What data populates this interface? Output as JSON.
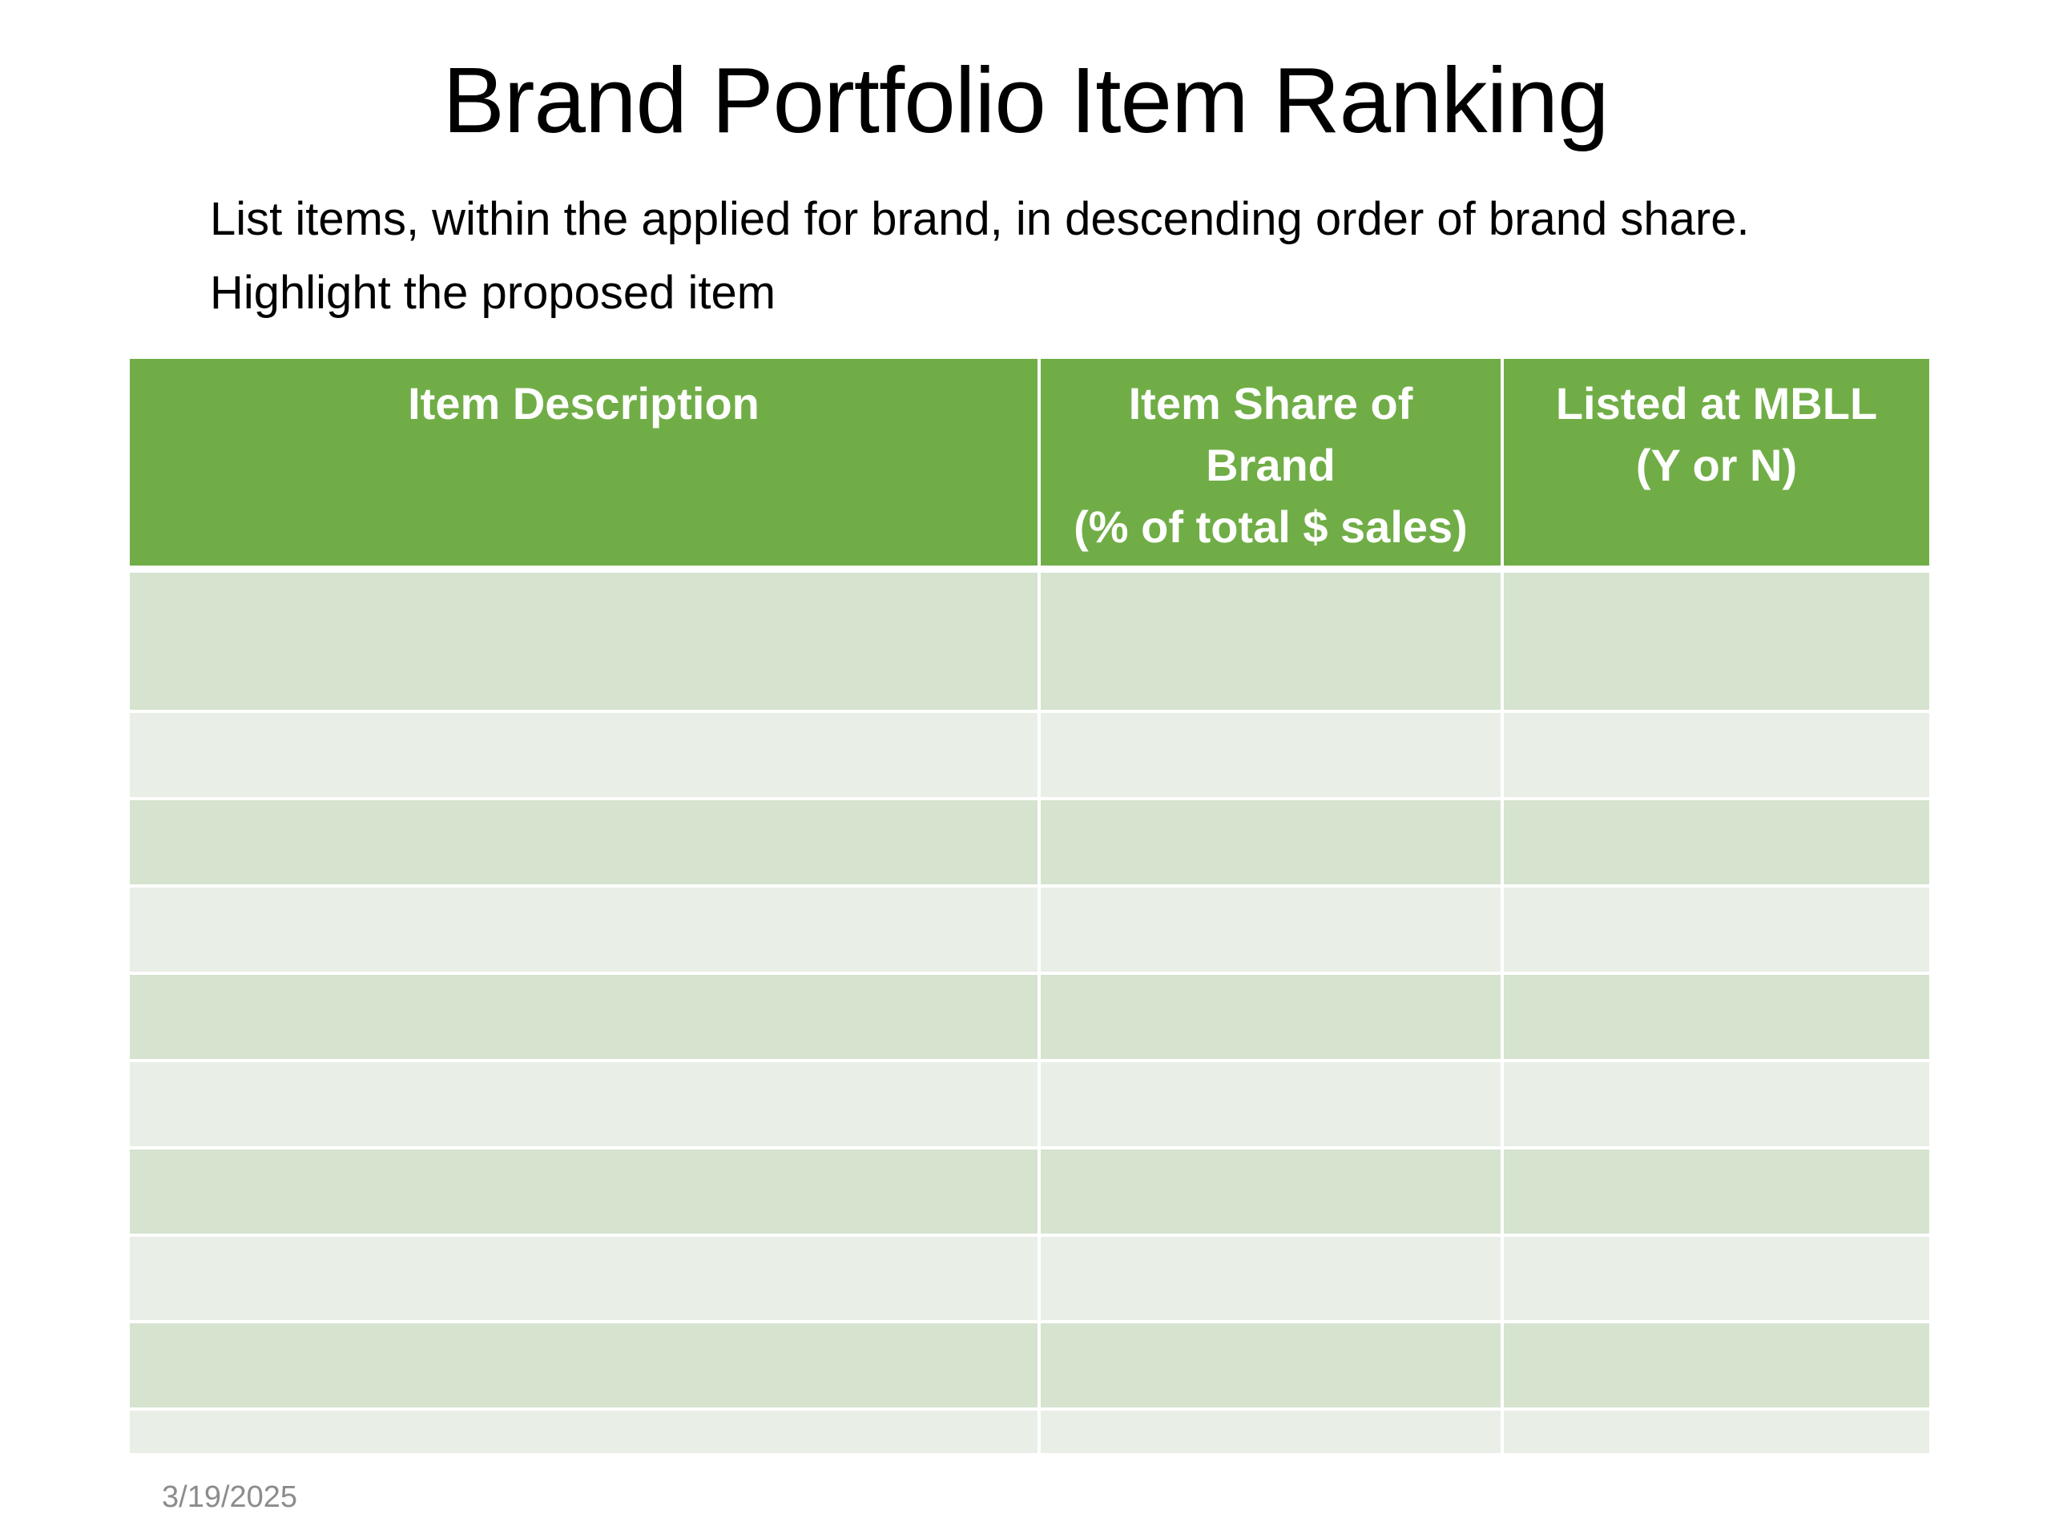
{
  "slide": {
    "title": "Brand Portfolio Item Ranking",
    "subtitle_lines": [
      "List items, within the applied for brand, in descending order of brand share.",
      "Highlight the proposed item"
    ],
    "date": "3/19/2025"
  },
  "table": {
    "header_color": "#70ad47",
    "band_colors": [
      "#d5e3cf",
      "#e9efe7"
    ],
    "columns": [
      {
        "lines": [
          "Item Description"
        ]
      },
      {
        "lines": [
          "Item Share of",
          "Brand",
          "(% of total $ sales)"
        ]
      },
      {
        "lines": [
          "Listed at MBLL",
          "(Y or N)"
        ]
      }
    ],
    "rows": [
      [
        "",
        "",
        ""
      ],
      [
        "",
        "",
        ""
      ],
      [
        "",
        "",
        ""
      ],
      [
        "",
        "",
        ""
      ],
      [
        "",
        "",
        ""
      ],
      [
        "",
        "",
        ""
      ],
      [
        "",
        "",
        ""
      ],
      [
        "",
        "",
        ""
      ],
      [
        "",
        "",
        ""
      ],
      [
        "",
        "",
        ""
      ]
    ]
  }
}
